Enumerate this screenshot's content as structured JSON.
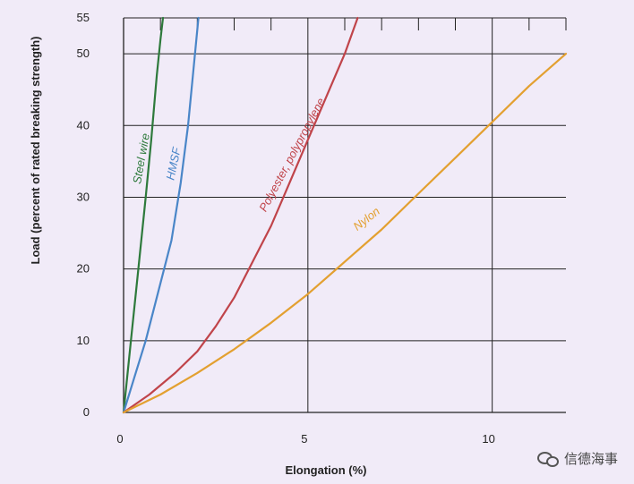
{
  "chart_data": {
    "type": "line",
    "xlabel": "Elongation (%)",
    "ylabel": "Load (percent of rated breaking strength)",
    "xlim": [
      0,
      12
    ],
    "ylim": [
      0,
      55
    ],
    "x_ticks": [
      0,
      5,
      10
    ],
    "y_ticks": [
      0,
      10,
      20,
      30,
      40,
      50,
      55
    ],
    "grid": true,
    "legend": "inline labels on curves",
    "series": [
      {
        "name": "Steel wire",
        "color": "#2e7a3c",
        "x": [
          0,
          0.2,
          0.4,
          0.6,
          0.75,
          0.9,
          1.0,
          1.07
        ],
        "y": [
          0,
          10,
          20,
          30,
          38,
          47,
          52,
          55
        ]
      },
      {
        "name": "HMSF",
        "color": "#4a86c8",
        "x": [
          0,
          0.3,
          0.6,
          0.95,
          1.3,
          1.55,
          1.75,
          1.9,
          2.03
        ],
        "y": [
          0,
          5,
          10,
          17,
          24,
          32,
          40,
          48,
          55
        ]
      },
      {
        "name": "Polyester, polypropylene",
        "color": "#c0444a",
        "x": [
          0,
          0.7,
          1.4,
          2.0,
          2.5,
          3.0,
          3.5,
          4.0,
          4.5,
          5.0,
          5.5,
          6.0,
          6.35
        ],
        "y": [
          0,
          2.5,
          5.5,
          8.5,
          12,
          16,
          21,
          26,
          32,
          38,
          44,
          50,
          55
        ]
      },
      {
        "name": "Nylon",
        "color": "#e3a030",
        "x": [
          0,
          1,
          2,
          3,
          4,
          5,
          6,
          7,
          8,
          9,
          10,
          11,
          12
        ],
        "y": [
          0,
          2.5,
          5.5,
          8.8,
          12.5,
          16.5,
          21,
          25.5,
          30.5,
          35.5,
          40.5,
          45.5,
          50
        ]
      }
    ]
  },
  "watermark": {
    "text": "信德海事",
    "icon": "wechat-icon"
  }
}
